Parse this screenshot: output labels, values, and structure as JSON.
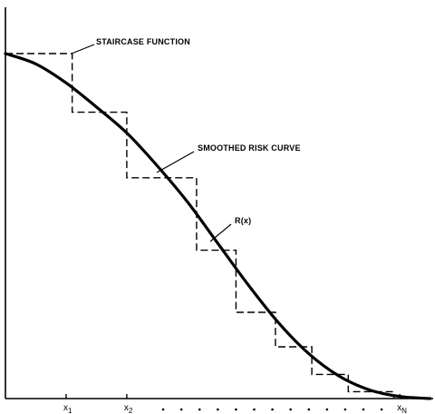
{
  "chart_data": {
    "type": "line",
    "title": "",
    "xlabel": "",
    "ylabel": "",
    "xlim": [
      0,
      14.1
    ],
    "ylim": [
      0,
      1
    ],
    "grid": false,
    "x_ticks": [
      {
        "x": 2,
        "label": "x",
        "sub": "1"
      },
      {
        "x": 4,
        "label": "x",
        "sub": "2"
      },
      {
        "x": 13,
        "label": "x",
        "sub": "N"
      }
    ],
    "ellipsis_ticks": [
      5.2,
      5.8,
      6.4,
      7.0,
      7.6,
      8.2,
      8.8,
      9.4,
      10.0,
      10.6,
      11.2,
      11.8,
      12.4
    ],
    "series": [
      {
        "name": "STAIRCASE FUNCTION",
        "style": "dashed",
        "points": [
          [
            0,
            1.0
          ],
          [
            2.2,
            1.0
          ],
          [
            2.2,
            0.83
          ],
          [
            4.0,
            0.83
          ],
          [
            4.0,
            0.64
          ],
          [
            6.3,
            0.64
          ],
          [
            6.3,
            0.43
          ],
          [
            7.6,
            0.43
          ],
          [
            7.6,
            0.25
          ],
          [
            8.9,
            0.25
          ],
          [
            8.9,
            0.15
          ],
          [
            10.1,
            0.15
          ],
          [
            10.1,
            0.07
          ],
          [
            11.3,
            0.07
          ],
          [
            11.3,
            0.02
          ],
          [
            12.8,
            0.02
          ],
          [
            12.8,
            0.0
          ]
        ]
      },
      {
        "name": "SMOOTHED RISK CURVE",
        "style": "solid",
        "points": [
          [
            0.0,
            1.0
          ],
          [
            1.0,
            0.97
          ],
          [
            2.0,
            0.915
          ],
          [
            3.0,
            0.845
          ],
          [
            4.0,
            0.77
          ],
          [
            5.0,
            0.675
          ],
          [
            6.0,
            0.57
          ],
          [
            7.0,
            0.45
          ],
          [
            8.0,
            0.33
          ],
          [
            9.0,
            0.22
          ],
          [
            10.0,
            0.13
          ],
          [
            11.0,
            0.065
          ],
          [
            12.0,
            0.025
          ],
          [
            13.0,
            0.006
          ],
          [
            14.0,
            0.0
          ]
        ]
      }
    ],
    "annotations": [
      {
        "text": "STAIRCASE FUNCTION",
        "x": 2.25,
        "y": 0.995
      },
      {
        "text": "SMOOTHED RISK CURVE",
        "x": 5.0,
        "y": 0.675
      },
      {
        "text": "R(x)",
        "x": 6.6,
        "y": 0.48
      }
    ]
  }
}
